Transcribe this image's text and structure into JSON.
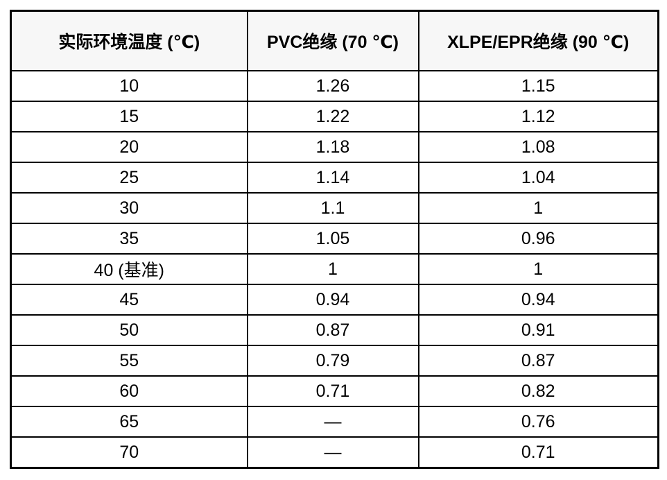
{
  "chart_data": {
    "type": "table",
    "columns": [
      "实际环境温度 (℃)",
      "PVC绝缘 (70 ℃)",
      "XLPE/EPR绝缘 (90 ℃)"
    ],
    "rows": [
      [
        "10",
        "1.26",
        "1.15"
      ],
      [
        "15",
        "1.22",
        "1.12"
      ],
      [
        "20",
        "1.18",
        "1.08"
      ],
      [
        "25",
        "1.14",
        "1.04"
      ],
      [
        "30",
        "1.1",
        "1"
      ],
      [
        "35",
        "1.05",
        "0.96"
      ],
      [
        "40 (基准)",
        "1",
        "1"
      ],
      [
        "45",
        "0.94",
        "0.94"
      ],
      [
        "50",
        "0.87",
        "0.91"
      ],
      [
        "55",
        "0.79",
        "0.87"
      ],
      [
        "60",
        "0.71",
        "0.82"
      ],
      [
        "65",
        "—",
        "0.76"
      ],
      [
        "70",
        "—",
        "0.71"
      ]
    ],
    "missing_value_marker": "—",
    "layout": {
      "header_background": "#f7f7f7",
      "border_color": "#000000",
      "text_color": "#000000",
      "cell_background": "#ffffff"
    }
  }
}
